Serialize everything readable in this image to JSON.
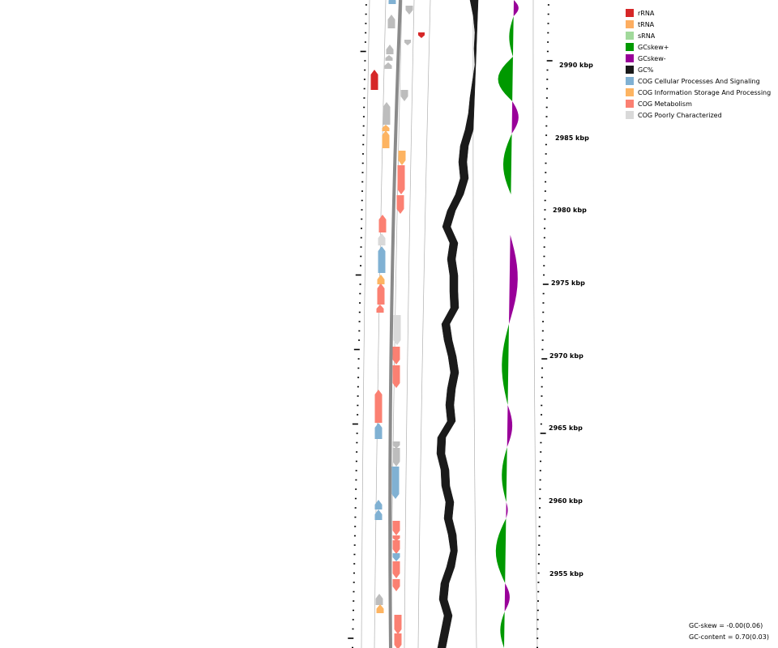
{
  "map": {
    "tick_labels": [
      "2990 kbp",
      "2985 kbp",
      "2980 kbp",
      "2975 kbp",
      "2970 kbp",
      "2965 kbp",
      "2960 kbp",
      "2955 kbp"
    ]
  },
  "legend": [
    {
      "label": "rRNA",
      "color": "#d62728"
    },
    {
      "label": "tRNA",
      "color": "#fdae61"
    },
    {
      "label": "sRNA",
      "color": "#a1d99b"
    },
    {
      "label": "GCskew+",
      "color": "#009900"
    },
    {
      "label": "GCskew-",
      "color": "#990099"
    },
    {
      "label": "GC%",
      "color": "#1a1a1a"
    },
    {
      "label": "COG Cellular Processes And Signaling",
      "color": "#80b1d3"
    },
    {
      "label": "COG Information Storage And Processing",
      "color": "#fdb462"
    },
    {
      "label": "COG Metabolism",
      "color": "#fb8072"
    },
    {
      "label": "COG Poorly Characterized",
      "color": "#d9d9d9"
    }
  ],
  "stats": {
    "gc_skew": "GC-skew = -0.00(0.06)",
    "gc_content": "GC-content = 0.70(0.03)"
  }
}
